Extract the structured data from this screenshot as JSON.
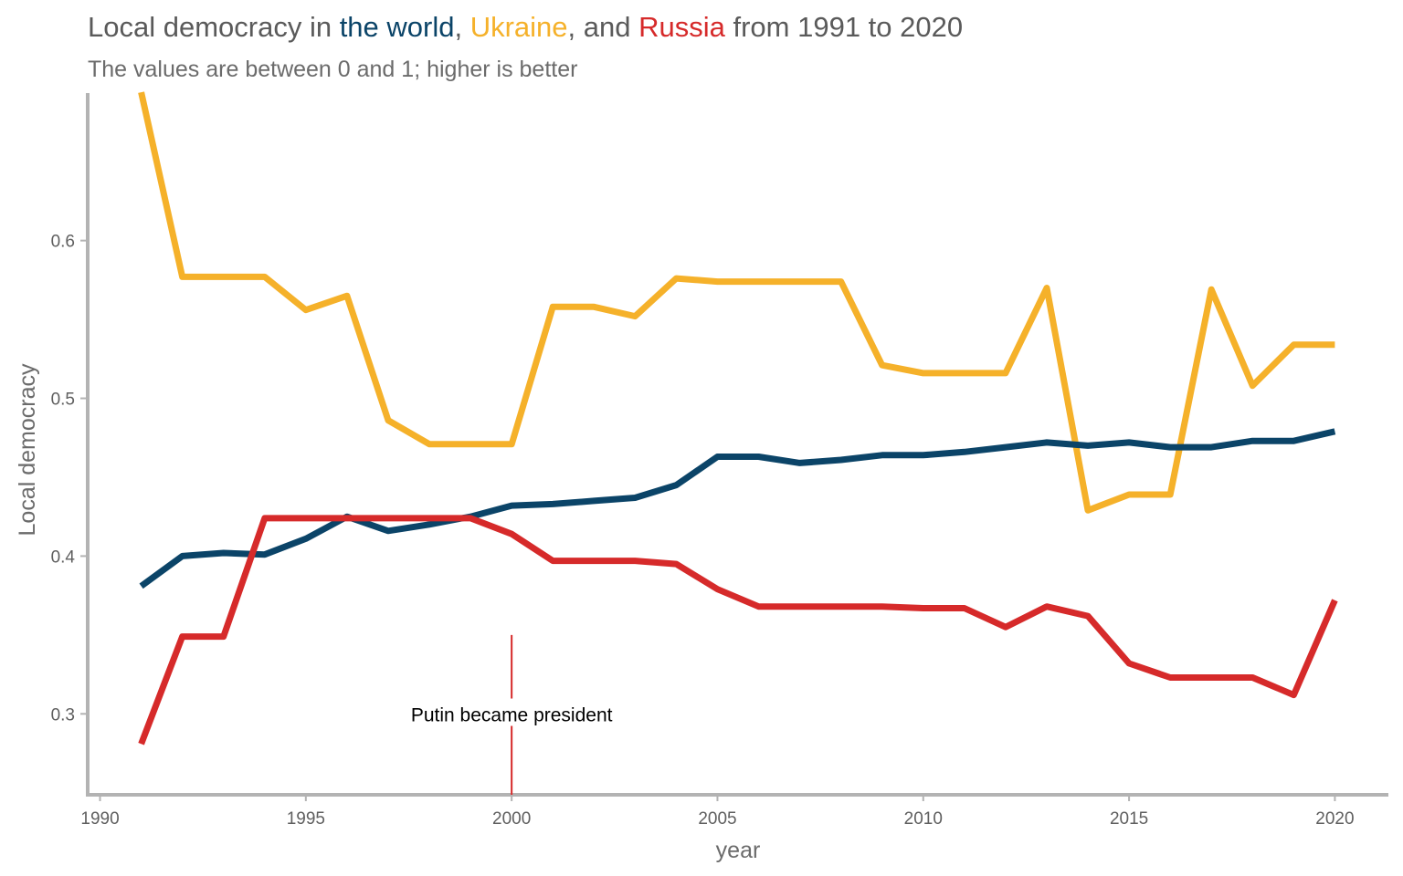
{
  "colors": {
    "world": "#0b4468",
    "ukraine": "#f5b12a",
    "russia": "#d62a2a",
    "title_text": "#5a5a5a",
    "axis": "#b3b3b3",
    "annotation_line": "#d62a2a"
  },
  "chart_data": {
    "type": "line",
    "title_parts": [
      {
        "text": "Local democracy in ",
        "color_key": "title_text"
      },
      {
        "text": "the world",
        "color_key": "world"
      },
      {
        "text": ", ",
        "color_key": "title_text"
      },
      {
        "text": "Ukraine",
        "color_key": "ukraine"
      },
      {
        "text": ", and ",
        "color_key": "title_text"
      },
      {
        "text": "Russia",
        "color_key": "russia"
      },
      {
        "text": " from 1991 to 2020",
        "color_key": "title_text"
      }
    ],
    "subtitle": "The values are between 0 and 1; higher is better",
    "xlabel": "year",
    "ylabel": "Local democracy",
    "xlim": [
      1989.7,
      2021.3
    ],
    "ylim": [
      0.2487,
      0.6935
    ],
    "x_ticks": [
      1990,
      1995,
      2000,
      2005,
      2010,
      2015,
      2020
    ],
    "y_ticks": [
      0.3,
      0.4,
      0.5,
      0.6
    ],
    "y_tick_labels": [
      "0.3",
      "0.4",
      "0.5",
      "0.6"
    ],
    "grid": false,
    "legend": "none (series identified by colored words in title)",
    "x": [
      1991,
      1992,
      1993,
      1994,
      1995,
      1996,
      1997,
      1998,
      1999,
      2000,
      2001,
      2002,
      2003,
      2004,
      2005,
      2006,
      2007,
      2008,
      2009,
      2010,
      2011,
      2012,
      2013,
      2014,
      2015,
      2016,
      2017,
      2018,
      2019,
      2020
    ],
    "series": [
      {
        "key": "ukraine",
        "values": [
          0.694,
          0.577,
          0.577,
          0.577,
          0.556,
          0.565,
          0.486,
          0.471,
          0.471,
          0.471,
          0.558,
          0.558,
          0.552,
          0.576,
          0.574,
          0.574,
          0.574,
          0.574,
          0.521,
          0.516,
          0.516,
          0.516,
          0.57,
          0.429,
          0.439,
          0.439,
          0.569,
          0.508,
          0.534,
          0.534
        ]
      },
      {
        "key": "world",
        "values": [
          0.381,
          0.4,
          0.402,
          0.401,
          0.411,
          0.425,
          0.416,
          0.42,
          0.425,
          0.432,
          0.433,
          0.435,
          0.437,
          0.445,
          0.463,
          0.463,
          0.459,
          0.461,
          0.464,
          0.464,
          0.466,
          0.469,
          0.472,
          0.47,
          0.472,
          0.469,
          0.469,
          0.473,
          0.473,
          0.479
        ]
      },
      {
        "key": "russia",
        "values": [
          0.281,
          0.349,
          0.349,
          0.424,
          0.424,
          0.424,
          0.424,
          0.424,
          0.424,
          0.414,
          0.397,
          0.397,
          0.397,
          0.395,
          0.379,
          0.368,
          0.368,
          0.368,
          0.368,
          0.367,
          0.367,
          0.355,
          0.368,
          0.362,
          0.332,
          0.323,
          0.323,
          0.323,
          0.312,
          0.372
        ]
      }
    ],
    "annotation": {
      "text": "Putin became president",
      "x": 2000,
      "y_range": [
        0.2487,
        0.35
      ]
    }
  }
}
